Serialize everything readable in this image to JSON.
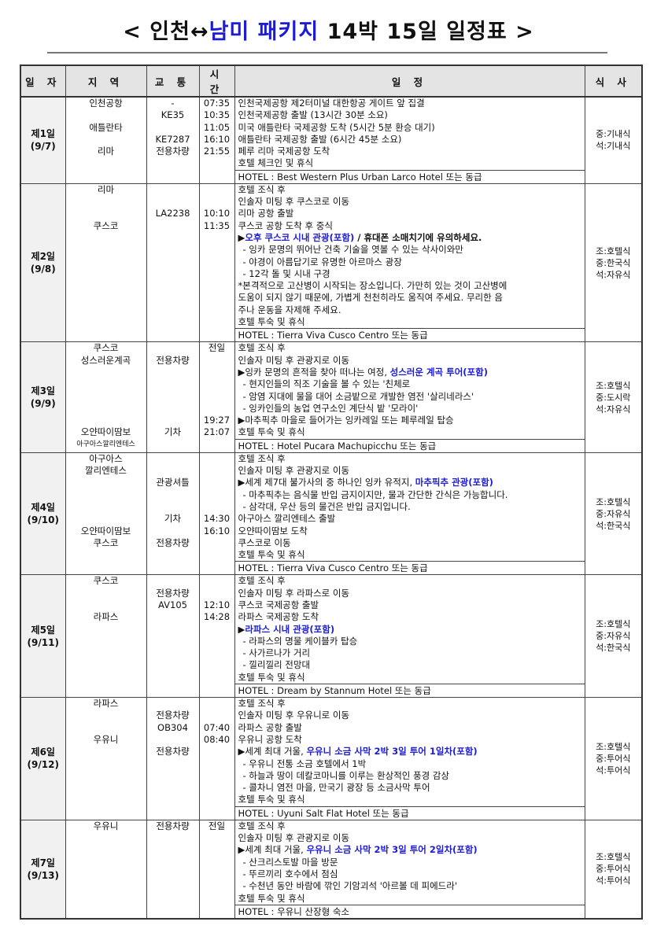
{
  "title": {
    "pre": "< 인천↔",
    "hl": "남미 패키지",
    "post": " 14박 15일 일정표 >"
  },
  "headers": [
    "일 자",
    "지 역",
    "교 통",
    "시 간",
    "일 정",
    "식 사"
  ],
  "days": [
    {
      "day": "제1일",
      "date": "(9/7)",
      "area": [
        "인천공항",
        "",
        "애틀란타",
        "",
        "리마",
        ""
      ],
      "transport": [
        "-",
        "KE35",
        "",
        "KE7287",
        "전용차량",
        ""
      ],
      "time": [
        "07:35",
        "10:35",
        "11:05",
        "16:10",
        "21:55",
        ""
      ],
      "lines": [
        {
          "pre": "인천국제공항 제2터미널 대한항공 게이트 앞 집결"
        },
        {
          "pre": "인천국제공항 출발 (13시간 30분 소요)"
        },
        {
          "pre": "미국 애틀란타 국제공항 도착 (5시간 5분 환승 대기)"
        },
        {
          "pre": "애틀란타 국제공항 출발 (6시간 45분 소요)"
        },
        {
          "pre": "페루 리마 국제공항 도착"
        },
        {
          "pre": "호텔 체크인 및 휴식"
        }
      ],
      "hotel": "HOTEL : Best Western Plus Urban Larco Hotel 또는 동급",
      "meals": [
        "중:기내식",
        "석:기내식"
      ]
    },
    {
      "day": "제2일",
      "date": "(9/8)",
      "area": [
        "리마",
        "",
        "",
        "쿠스코"
      ],
      "transport": [
        "",
        "",
        "LA2238"
      ],
      "time": [
        "",
        "",
        "10:10",
        "11:35"
      ],
      "lines": [
        {
          "pre": "호텔 조식 후"
        },
        {
          "pre": "인솔자 미팅 후 쿠스코로 이동"
        },
        {
          "pre": "리마 공항 출발"
        },
        {
          "pre": "쿠스코 공항 도착 후 중식"
        },
        {
          "pre": "▶",
          "hl": "오후 쿠스코 시내 관광(포함)",
          "post": " / 휴대폰 소매치기에 유의하세요."
        },
        {
          "pre": " - 잉카 문명의 뛰어난 건축 기술을 엿볼 수 있는 삭사이와만",
          "ind": true
        },
        {
          "pre": " - 야경이 아름답기로 유명한 아르마스 광장",
          "ind": true
        },
        {
          "pre": " - 12각 돌 및 시내 구경",
          "ind": true
        },
        {
          "pre": "*본격적으로 고산병이 시작되는 장소입니다. 가만히 있는 것이 고산병에"
        },
        {
          "pre": " 도움이 되지 않기 때문에, 가볍게 천천히라도 움직여 주세요. 무리한 음"
        },
        {
          "pre": " 주나 운동을 자제해 주세요."
        },
        {
          "pre": "호텔 투숙 및 휴식"
        }
      ],
      "hotel": "HOTEL : Tierra Viva Cusco Centro 또는 동급",
      "meals": [
        "조:호텔식",
        "중:한국식",
        "석:자유식"
      ]
    },
    {
      "day": "제3일",
      "date": "(9/9)",
      "area": [
        "쿠스코",
        "성스러운계곡",
        "",
        "",
        "",
        "",
        "",
        "오얀따이땀보",
        "아구아스깔리엔테스"
      ],
      "transport": [
        "",
        "전용차량",
        "",
        "",
        "",
        "",
        "",
        "기차"
      ],
      "time": [
        "전일",
        "",
        "",
        "",
        "",
        "",
        "19:27",
        "21:07"
      ],
      "lines": [
        {
          "pre": "호텔 조식 후"
        },
        {
          "pre": "인솔자 미팅 후 관광지로 이동"
        },
        {
          "pre": "▶잉카 문명의 흔적을 찾아 떠나는 여정, ",
          "hl": "성스러운 계곡 투어(포함)"
        },
        {
          "pre": " - 현지인들의 직조 기술을 볼 수 있는 '친체로",
          "ind": true
        },
        {
          "pre": " - 암염 지대에 물을 대어 소금밭으로 개발한 염전 '살리네라스'",
          "ind": true
        },
        {
          "pre": " - 잉카인들의 농업 연구소인 계단식 밭 '모라이'",
          "ind": true
        },
        {
          "pre": "▶마추픽추 마을로 들어가는 잉카레일 또는 페루레일 탑승"
        },
        {
          "pre": "호텔 투숙 및 휴식"
        }
      ],
      "hotel": "HOTEL : Hotel Pucara Machupicchu 또는 동급",
      "meals": [
        "조:호텔식",
        "중:도시락",
        "석:자유식"
      ]
    },
    {
      "day": "제4일",
      "date": "(9/10)",
      "area": [
        "아구아스",
        "깔리엔테스",
        "",
        "",
        "",
        "",
        "오얀따이땀보",
        "쿠스코"
      ],
      "transport": [
        "",
        "",
        "관광셔틀",
        "",
        "",
        "기차",
        "",
        "전용차량"
      ],
      "time": [
        "",
        "",
        "",
        "",
        "",
        "14:30",
        "16:10"
      ],
      "lines": [
        {
          "pre": "호텔 조식 후"
        },
        {
          "pre": "인솔자 미팅 후 관광지로 이동"
        },
        {
          "pre": "▶세계 제7대 불가사의 중 하나인 잉카 유적지, ",
          "hl": "마추픽추 관광(포함)"
        },
        {
          "pre": " - 마추픽추는 음식물 반입 금지이지만, 물과 간단한 간식은 가능합니다.",
          "ind": true
        },
        {
          "pre": " - 삼각대, 우산 등의 물건은 반입 금지입니다.",
          "ind": true
        },
        {
          "pre": "아구아스 깔리엔테스 출발"
        },
        {
          "pre": "오얀따이땀보 도착"
        },
        {
          "pre": "쿠스코로 이동"
        },
        {
          "pre": "호텔 투숙 및 휴식"
        }
      ],
      "hotel": "HOTEL : Tierra Viva Cusco Centro 또는 동급",
      "meals": [
        "조:호텔식",
        "중:자유식",
        "석:한국식"
      ]
    },
    {
      "day": "제5일",
      "date": "(9/11)",
      "area": [
        "쿠스코",
        "",
        "",
        "라파스"
      ],
      "transport": [
        "",
        "전용차량",
        "AV105"
      ],
      "time": [
        "",
        "",
        "12:10",
        "14:28"
      ],
      "lines": [
        {
          "pre": "호텔 조식 후"
        },
        {
          "pre": "인솔자 미팅 후 라파스로 이동"
        },
        {
          "pre": "쿠스코 국제공항 출발"
        },
        {
          "pre": "라파스 국제공항 도착"
        },
        {
          "pre": "▶",
          "hl": "라파스 시내 관광(포함)"
        },
        {
          "pre": " - 라파스의 명물 케이블카 탑승",
          "ind": true
        },
        {
          "pre": " - 사가르나가 거리",
          "ind": true
        },
        {
          "pre": " - 낄리낄리 전망대",
          "ind": true
        },
        {
          "pre": "호텔 투숙 및 휴식"
        }
      ],
      "hotel": "HOTEL : Dream by Stannum Hotel 또는 동급",
      "meals": [
        "조:호텔식",
        "중:자유식",
        "석:한국식"
      ]
    },
    {
      "day": "제6일",
      "date": "(9/12)",
      "area": [
        "라파스",
        "",
        "",
        "우유니"
      ],
      "transport": [
        "",
        "전용차량",
        "OB304",
        "",
        "전용차량"
      ],
      "time": [
        "",
        "",
        "07:40",
        "08:40"
      ],
      "lines": [
        {
          "pre": "호텔 조식 후"
        },
        {
          "pre": "인솔자 미팅 후 우유니로 이동"
        },
        {
          "pre": "라파스 공항 출발"
        },
        {
          "pre": "우유니 공항 도착"
        },
        {
          "pre": "▶세계 최대 거울, ",
          "hl": "우유니 소금 사막 2박 3일 투어 1일차(포함)"
        },
        {
          "pre": " - 우유니 전통 소금 호텔에서 1박",
          "ind": true
        },
        {
          "pre": " - 하늘과 땅이 데칼코마니를 이루는 환상적인 풍경 감상",
          "ind": true
        },
        {
          "pre": " - 콜차니 염전 마을, 만국기 광장 등 소금사막 투어",
          "ind": true
        },
        {
          "pre": "호텔 투숙 및 휴식"
        }
      ],
      "hotel": "HOTEL : Uyuni Salt Flat Hotel 또는 동급",
      "meals": [
        "조:호텔식",
        "중:투어식",
        "석:투어식"
      ]
    },
    {
      "day": "제7일",
      "date": "(9/13)",
      "area": [
        "우유니"
      ],
      "transport": [
        "전용차량"
      ],
      "time": [
        "전일"
      ],
      "lines": [
        {
          "pre": "호텔 조식 후"
        },
        {
          "pre": "인솔자 미팅 후 관광지로 이동"
        },
        {
          "pre": "▶세계 최대 거울, ",
          "hl": "우유니 소금 사막 2박 3일 투어 2일차(포함)"
        },
        {
          "pre": " - 산크리스토발 마을 방문",
          "ind": true
        },
        {
          "pre": " - 뚜르끼리 호수에서 점심",
          "ind": true
        },
        {
          "pre": " - 수천년 동안 바람에 깎인 기암괴석 '아르볼 데 피에드라'",
          "ind": true
        },
        {
          "pre": "호텔 투숙 및 휴식"
        }
      ],
      "hotel": "HOTEL : 우유니 산장형 숙소",
      "meals": [
        "조:호텔식",
        "중:투어식",
        "석:투어식"
      ]
    }
  ]
}
